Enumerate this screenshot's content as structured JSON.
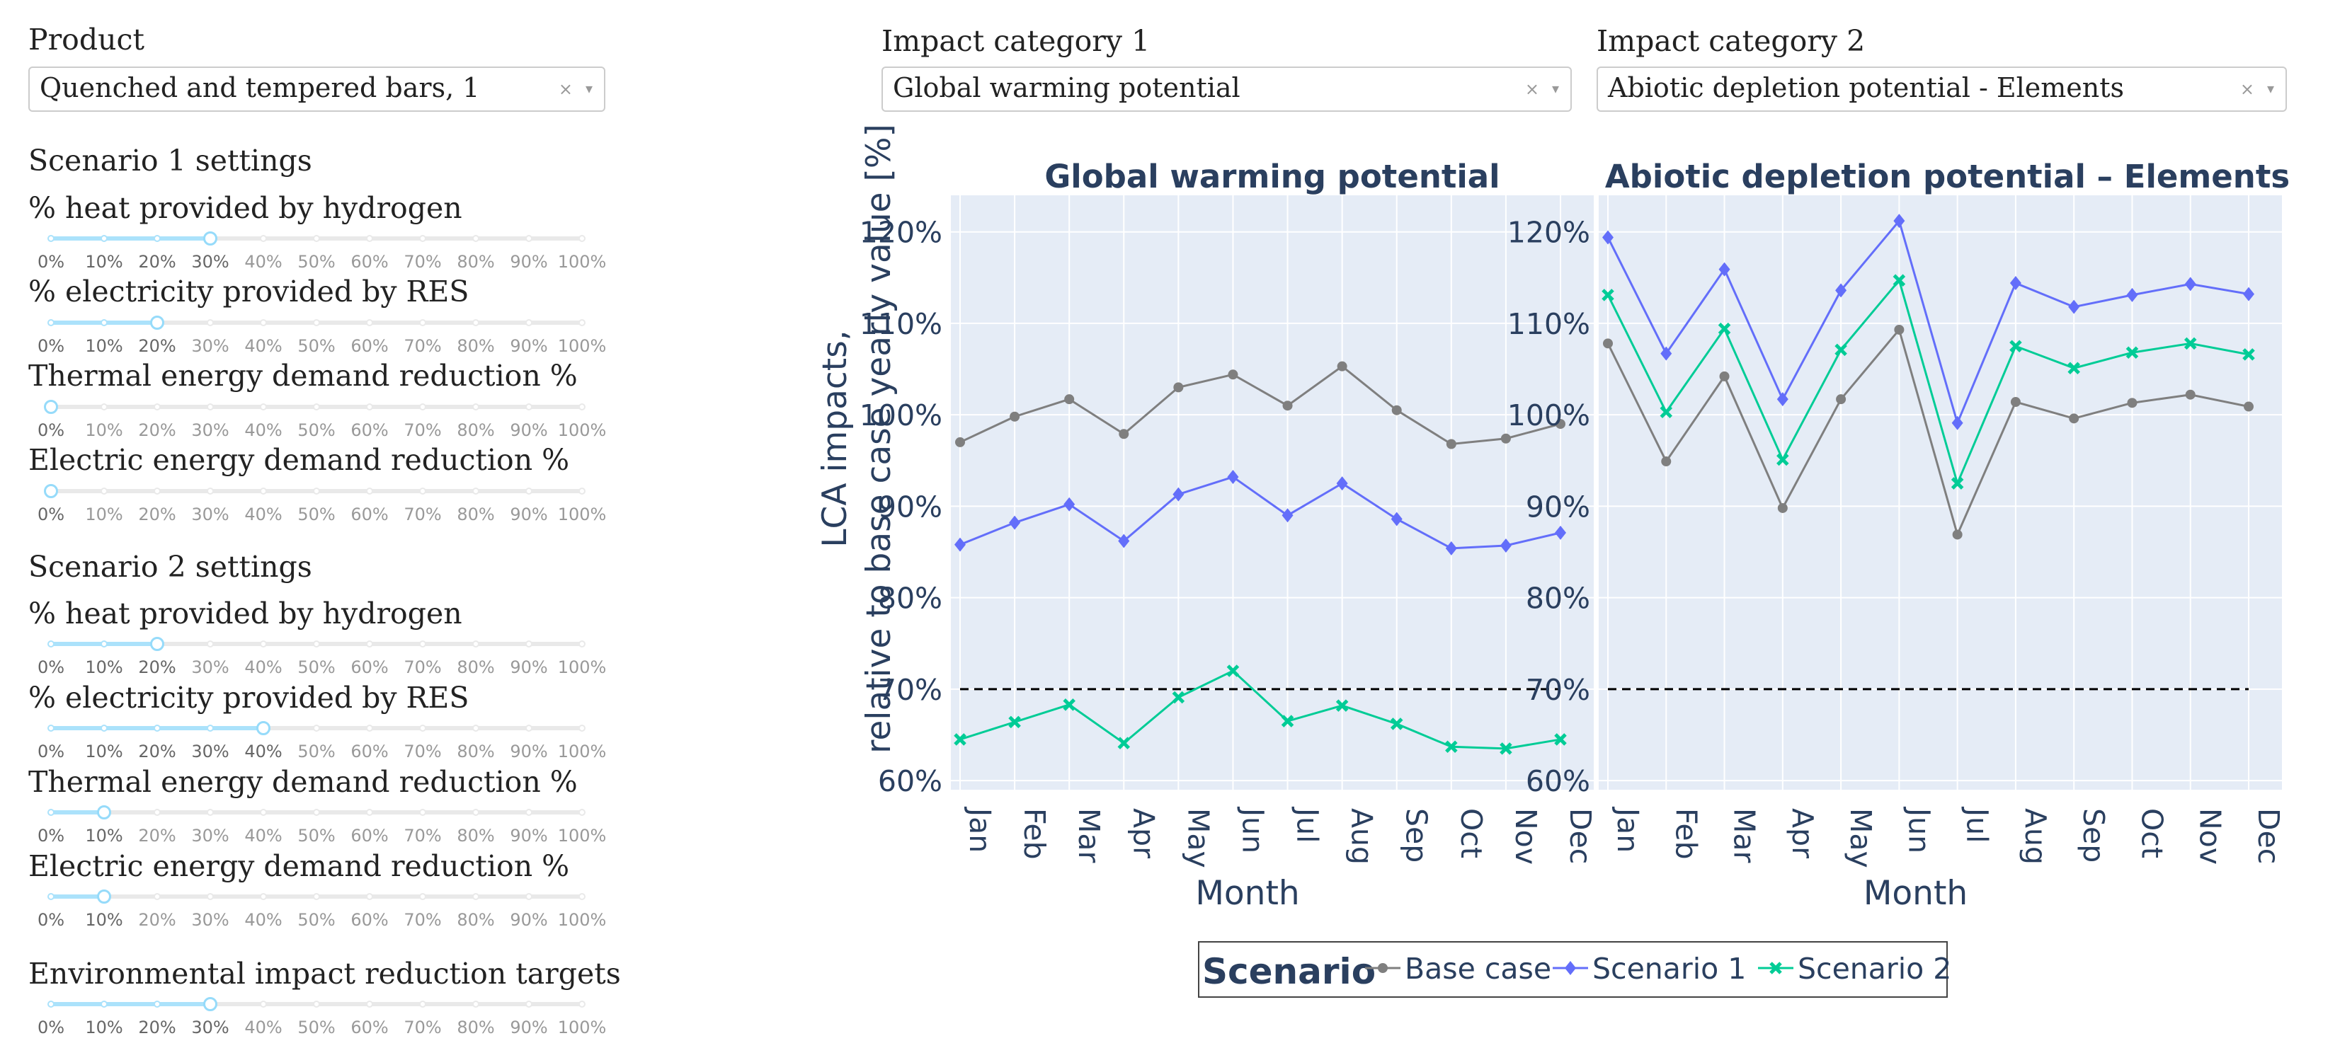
{
  "product": {
    "label": "Product",
    "value": "Quenched and tempered bars, 1",
    "clear_icon": "×",
    "arrow_icon": "▾"
  },
  "impact1": {
    "label": "Impact category 1",
    "value": "Global warming potential",
    "clear_icon": "×",
    "arrow_icon": "▾"
  },
  "impact2": {
    "label": "Impact category 2",
    "value": "Abiotic depletion potential - Elements",
    "clear_icon": "×",
    "arrow_icon": "▾"
  },
  "slider_marks": [
    "0%",
    "10%",
    "20%",
    "30%",
    "40%",
    "50%",
    "60%",
    "70%",
    "80%",
    "90%",
    "100%"
  ],
  "scenario1": {
    "title": "Scenario 1 settings",
    "hydrogen": {
      "label": "% heat provided by hydrogen",
      "value": 30
    },
    "res": {
      "label": "% electricity provided by RES",
      "value": 20
    },
    "thermal": {
      "label": "Thermal energy demand reduction %",
      "value": 0
    },
    "electric": {
      "label": "Electric energy demand reduction %",
      "value": 0
    }
  },
  "scenario2": {
    "title": "Scenario 2 settings",
    "hydrogen": {
      "label": "% heat provided by hydrogen",
      "value": 20
    },
    "res": {
      "label": "% electricity provided by RES",
      "value": 40
    },
    "thermal": {
      "label": "Thermal energy demand reduction %",
      "value": 10
    },
    "electric": {
      "label": "Electric energy demand reduction %",
      "value": 10
    }
  },
  "targets": {
    "label": "Environmental impact reduction targets",
    "value": 30
  },
  "colors": {
    "base": "#7f7f7f",
    "scenario1": "#636efa",
    "scenario2": "#00cc96",
    "plot_bg": "#e5ecf6",
    "text": "#2a3f5f",
    "target_line": "#000000"
  },
  "chart_data": {
    "type": "line",
    "ylabel_line1": "LCA impacts,",
    "ylabel_line2": "relative to base case yearly value [%]",
    "xlabel": "Month",
    "categories": [
      "Jan",
      "Feb",
      "Mar",
      "Apr",
      "May",
      "Jun",
      "Jul",
      "Aug",
      "Sep",
      "Oct",
      "Nov",
      "Dec"
    ],
    "yticks": [
      "60%",
      "70%",
      "80%",
      "90%",
      "100%",
      "110%",
      "120%"
    ],
    "ylim": [
      59,
      124
    ],
    "grid": true,
    "target_line": 70,
    "legend": {
      "title": "Scenario",
      "placement": "bottom-center",
      "items": [
        "Base case",
        "Scenario 1",
        "Scenario 2"
      ]
    },
    "panels": [
      {
        "title": "Global warming potential",
        "series": [
          {
            "name": "Base case",
            "values": [
              97.0,
              99.8,
              101.7,
              97.9,
              103.0,
              104.4,
              101.0,
              105.3,
              100.5,
              96.8,
              97.4,
              99.0
            ]
          },
          {
            "name": "Scenario 1",
            "values": [
              85.8,
              88.2,
              90.2,
              86.2,
              91.3,
              93.2,
              89.0,
              92.5,
              88.6,
              85.4,
              85.7,
              87.1
            ]
          },
          {
            "name": "Scenario 2",
            "values": [
              64.5,
              66.4,
              68.3,
              64.1,
              69.1,
              72.0,
              66.5,
              68.2,
              66.2,
              63.7,
              63.5,
              64.5
            ]
          }
        ]
      },
      {
        "title": "Abiotic depletion potential – Elements",
        "series": [
          {
            "name": "Base case",
            "values": [
              107.8,
              94.9,
              104.2,
              89.8,
              101.7,
              109.3,
              86.9,
              101.4,
              99.6,
              101.3,
              102.2,
              100.9
            ]
          },
          {
            "name": "Scenario 1",
            "values": [
              119.4,
              106.7,
              115.9,
              101.7,
              113.6,
              121.2,
              99.1,
              114.4,
              111.8,
              113.1,
              114.3,
              113.2
            ]
          },
          {
            "name": "Scenario 2",
            "values": [
              113.1,
              100.3,
              109.4,
              95.1,
              107.1,
              114.7,
              92.5,
              107.5,
              105.1,
              106.8,
              107.8,
              106.6
            ]
          }
        ]
      }
    ]
  }
}
